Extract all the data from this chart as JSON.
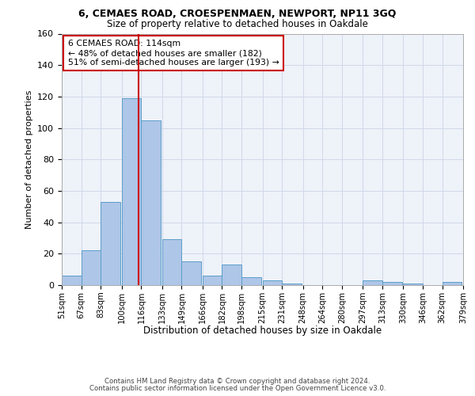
{
  "title1": "6, CEMAES ROAD, CROESPENMAEN, NEWPORT, NP11 3GQ",
  "title2": "Size of property relative to detached houses in Oakdale",
  "xlabel": "Distribution of detached houses by size in Oakdale",
  "ylabel": "Number of detached properties",
  "footer1": "Contains HM Land Registry data © Crown copyright and database right 2024.",
  "footer2": "Contains public sector information licensed under the Open Government Licence v3.0.",
  "annotation_title": "6 CEMAES ROAD: 114sqm",
  "annotation_line1": "← 48% of detached houses are smaller (182)",
  "annotation_line2": "51% of semi-detached houses are larger (193) →",
  "property_size": 114,
  "categories": [
    "51sqm",
    "67sqm",
    "83sqm",
    "100sqm",
    "116sqm",
    "133sqm",
    "149sqm",
    "166sqm",
    "182sqm",
    "198sqm",
    "215sqm",
    "231sqm",
    "248sqm",
    "264sqm",
    "280sqm",
    "297sqm",
    "313sqm",
    "330sqm",
    "346sqm",
    "362sqm",
    "379sqm"
  ],
  "bin_starts": [
    51,
    67,
    83,
    100,
    116,
    133,
    149,
    166,
    182,
    198,
    215,
    231,
    248,
    264,
    280,
    297,
    313,
    330,
    346,
    362,
    379
  ],
  "values": [
    6,
    22,
    53,
    119,
    105,
    29,
    15,
    6,
    13,
    5,
    3,
    1,
    0,
    0,
    0,
    3,
    2,
    1,
    0,
    2
  ],
  "bar_color": "#aec6e8",
  "bar_edge_color": "#5a9ec9",
  "vline_x": 114,
  "vline_color": "#cc0000",
  "grid_color": "#d0d8e8",
  "bg_color": "#eef2f9",
  "annotation_box_color": "#cc0000",
  "ylim": [
    0,
    160
  ],
  "yticks": [
    0,
    20,
    40,
    60,
    80,
    100,
    120,
    140,
    160
  ]
}
